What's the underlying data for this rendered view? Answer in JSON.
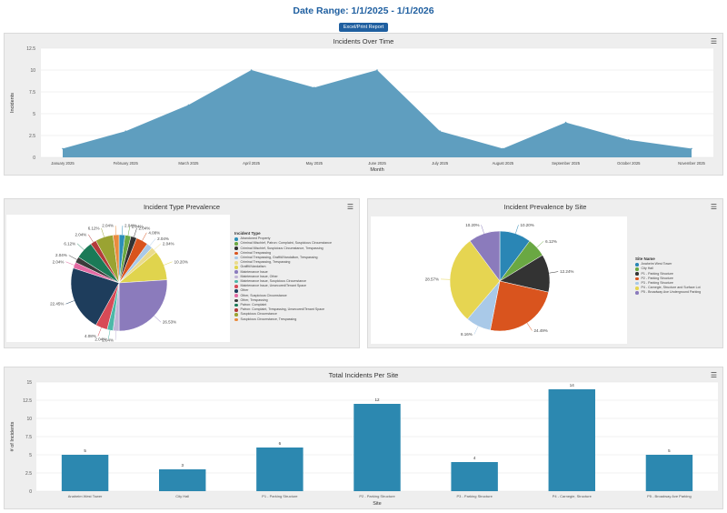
{
  "header": {
    "date_range": "Date Range: 1/1/2025 - 1/1/2026",
    "export_button": "Excel/Print Report"
  },
  "menu_icon": "hamburger-menu-icon",
  "chart_data": [
    {
      "type": "area",
      "title": "Incidents Over Time",
      "xlabel": "Month",
      "ylabel": "Incidents",
      "categories": [
        "January 2025",
        "February 2025",
        "March 2025",
        "April 2025",
        "May 2025",
        "June 2025",
        "July 2025",
        "August 2025",
        "September 2025",
        "October 2025",
        "November 2025"
      ],
      "values": [
        1,
        3,
        6,
        10,
        8,
        10,
        3,
        1,
        4,
        2,
        1
      ],
      "yticks": [
        0,
        2.5,
        5,
        7.5,
        10,
        12.5
      ],
      "ytick_labels": [
        "0",
        "2.5",
        "5",
        "7.5",
        "10",
        "12.5"
      ],
      "ylim": [
        0,
        12.5
      ],
      "color": "#5f9ebf",
      "grid": true
    },
    {
      "type": "pie",
      "title": "Incident Type Prevalence",
      "legend_title": "Incident Type",
      "legend_placement": "right",
      "slices": [
        {
          "name": "Abandoned Property",
          "value": 2.04,
          "label": "2.04%",
          "color": "#2c8fb8"
        },
        {
          "name": "Criminal Mischief, Patron: Complaint, Suspicious Circumstance",
          "value": 2.04,
          "label": "2.04%",
          "color": "#6ca843"
        },
        {
          "name": "Criminal Mischief, Suspicious Circumstance, Trespassing",
          "value": 2.04,
          "label": "2.04%",
          "color": "#333333"
        },
        {
          "name": "Criminal Trespassing",
          "value": 4.08,
          "label": "4.08%",
          "color": "#d9541e"
        },
        {
          "name": "Criminal Trespassing, Graffiti/Vandalism, Trespassing",
          "value": 2.04,
          "label": "2.04%",
          "color": "#a9c9e8"
        },
        {
          "name": "Criminal Trespassing, Trespassing",
          "value": 2.04,
          "label": "2.04%",
          "color": "#eadb8b"
        },
        {
          "name": "Graffiti/Vandalism",
          "value": 10.2,
          "label": "10.20%",
          "color": "#e0d44d"
        },
        {
          "name": "Maintenance Issue",
          "value": 26.53,
          "label": "26.53%",
          "color": "#8b7bbc"
        },
        {
          "name": "Maintenance Issue, Other",
          "value": 2.04,
          "label": "2.04%",
          "color": "#c1b5d6"
        },
        {
          "name": "Maintenance Issue, Suspicious Circumstance",
          "value": 2.04,
          "label": "2.04%",
          "color": "#4db8a8"
        },
        {
          "name": "Maintenance Issue, Unsecured/Tenant Space",
          "value": 4.08,
          "label": "4.08%",
          "color": "#d84a56"
        },
        {
          "name": "Other",
          "value": 22.45,
          "label": "22.45%",
          "color": "#1e3d5c"
        },
        {
          "name": "Other, Suspicious Circumstance",
          "value": 2.04,
          "label": "2.04%",
          "color": "#e46aa3"
        },
        {
          "name": "Other, Trespassing",
          "value": 2.04,
          "label": "2.04%",
          "color": "#3b3b3b"
        },
        {
          "name": "Patron: Complaint",
          "value": 6.12,
          "label": "6.12%",
          "color": "#1b7a57"
        },
        {
          "name": "Patron: Complaint, Trespassing, Unsecured/Tenant Space",
          "value": 2.04,
          "label": "2.04%",
          "color": "#b33a3a"
        },
        {
          "name": "Suspicious Circumstance",
          "value": 6.12,
          "label": "6.12%",
          "color": "#9aa332"
        },
        {
          "name": "Suspicious Circumstance, Trespassing",
          "value": 2.04,
          "label": "2.04%",
          "color": "#e98b3e"
        }
      ]
    },
    {
      "type": "pie",
      "title": "Incident Prevalence by Site",
      "legend_title": "Site Name",
      "legend_placement": "right",
      "slices": [
        {
          "name": "Anaheim West Tower",
          "value": 10.2,
          "label": "10.20%",
          "color": "#2a86b5"
        },
        {
          "name": "City Hall",
          "value": 6.12,
          "label": "6.12%",
          "color": "#6aa843"
        },
        {
          "name": "P1 - Parking Structure",
          "value": 12.24,
          "label": "12.24%",
          "color": "#333333"
        },
        {
          "name": "P2 - Parking Structure",
          "value": 24.49,
          "label": "24.49%",
          "color": "#d9541e"
        },
        {
          "name": "P3 - Parking Structure",
          "value": 8.16,
          "label": "8.16%",
          "color": "#a9c9e8"
        },
        {
          "name": "P4 - Carnegie, Structure and Surface Lot",
          "value": 28.57,
          "label": "28.57%",
          "color": "#e6d551"
        },
        {
          "name": "P5 - Broadway Ave Underground Parking",
          "value": 10.2,
          "label": "10.20%",
          "color": "#8b7bbc"
        }
      ]
    },
    {
      "type": "bar",
      "title": "Total Incidents Per Site",
      "xlabel": "Site",
      "ylabel": "# of Incidents",
      "categories": [
        "Anaheim West Tower",
        "City Hall",
        "P1 - Parking Structure",
        "P2 - Parking Structure",
        "P3 - Parking Structure",
        "P4 - Carnegie, Structure",
        "P5 - Broadway Ave Parking"
      ],
      "values": [
        5,
        3,
        6,
        12,
        4,
        14,
        5
      ],
      "yticks": [
        0,
        2.5,
        5,
        7.5,
        10,
        12.5,
        15
      ],
      "ytick_labels": [
        "0",
        "2.5",
        "5",
        "7.5",
        "10",
        "12.5",
        "15"
      ],
      "ylim": [
        0,
        15
      ],
      "color": "#2c88b0",
      "grid": true
    }
  ]
}
